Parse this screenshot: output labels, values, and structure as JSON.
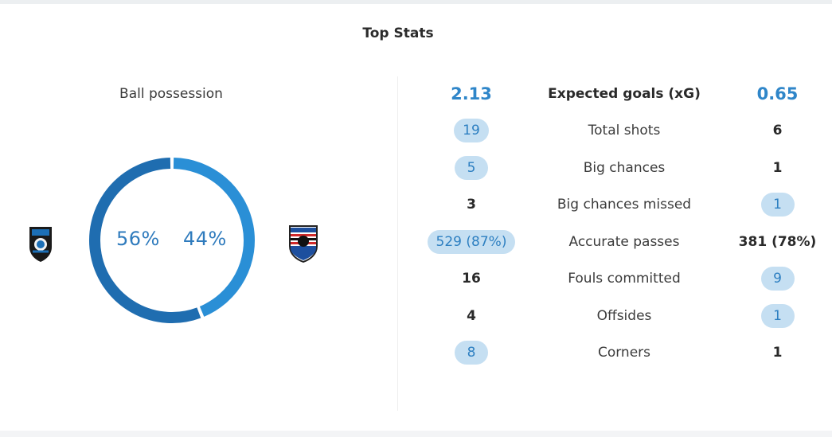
{
  "header": {
    "title": "Top Stats"
  },
  "possession": {
    "label": "Ball possession",
    "home_percent": 56,
    "away_percent": 44,
    "home_text": "56%",
    "away_text": "44%",
    "home_color": "#1f6db0",
    "away_color": "#2a8fd6"
  },
  "teams": {
    "home_crest_icon": "atalanta-crest-icon",
    "away_crest_icon": "sampdoria-crest-icon"
  },
  "stats": [
    {
      "label": "Expected goals (xG)",
      "home": "2.13",
      "away": "0.65",
      "highlight": "both-big"
    },
    {
      "label": "Total shots",
      "home": "19",
      "away": "6",
      "highlight": "home"
    },
    {
      "label": "Big chances",
      "home": "5",
      "away": "1",
      "highlight": "home"
    },
    {
      "label": "Big chances missed",
      "home": "3",
      "away": "1",
      "highlight": "away"
    },
    {
      "label": "Accurate passes",
      "home": "529 (87%)",
      "away": "381 (78%)",
      "highlight": "home"
    },
    {
      "label": "Fouls committed",
      "home": "16",
      "away": "9",
      "highlight": "away"
    },
    {
      "label": "Offsides",
      "home": "4",
      "away": "1",
      "highlight": "away"
    },
    {
      "label": "Corners",
      "home": "8",
      "away": "1",
      "highlight": "home"
    }
  ],
  "colors": {
    "accent": "#2f86c9",
    "pill_bg": "#c5dff2",
    "text": "#333333"
  }
}
